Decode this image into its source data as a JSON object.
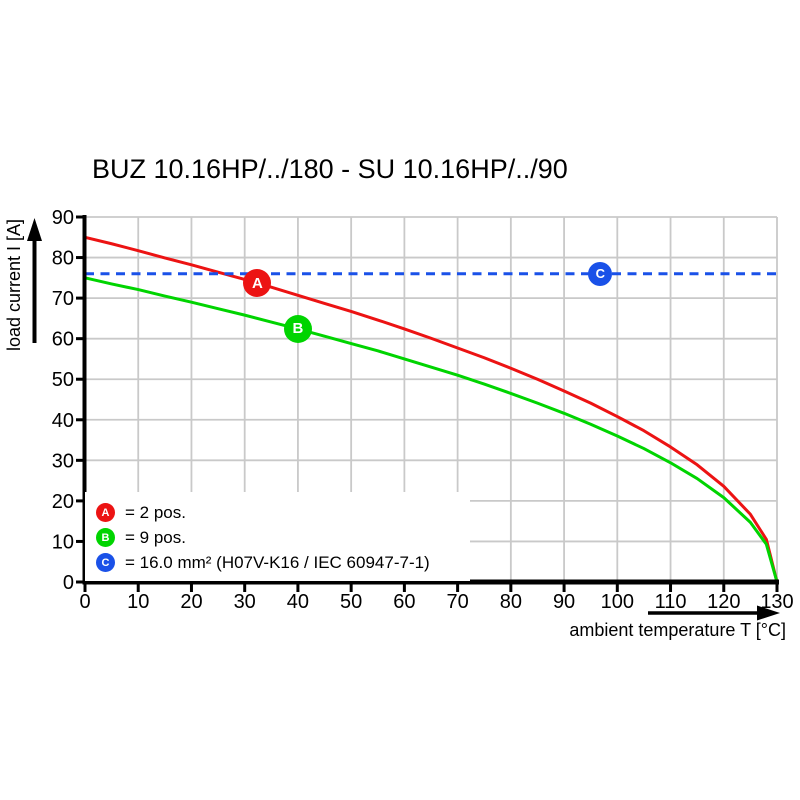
{
  "title": "BUZ 10.16HP/../180 - SU 10.16HP/../90",
  "colors": {
    "red": "#ec1313",
    "green": "#00d400",
    "blue": "#1a51e8",
    "grid": "#c9c9c9",
    "axis": "#000000",
    "background": "#ffffff"
  },
  "legend": {
    "items": [
      {
        "letter": "A",
        "color": "#ec1313",
        "label": "= 2 pos."
      },
      {
        "letter": "B",
        "color": "#00d400",
        "label": "= 9 pos."
      },
      {
        "letter": "C",
        "color": "#1a51e8",
        "label": "= 16.0 mm² (H07V-K16 / IEC 60947-7-1)"
      }
    ]
  },
  "chart_data": {
    "type": "line",
    "title": "BUZ 10.16HP/../180 - SU 10.16HP/../90",
    "xlabel": "ambient temperature T [°C]",
    "ylabel": "load current I [A]",
    "xlim": [
      0,
      130
    ],
    "ylim": [
      0,
      90
    ],
    "grid": true,
    "x_ticks": [
      0,
      10,
      20,
      30,
      40,
      50,
      60,
      70,
      80,
      90,
      100,
      110,
      120,
      130
    ],
    "y_ticks": [
      0,
      10,
      20,
      30,
      40,
      50,
      60,
      70,
      80,
      90
    ],
    "x": [
      0,
      5,
      10,
      15,
      20,
      25,
      30,
      35,
      40,
      45,
      50,
      55,
      60,
      65,
      70,
      75,
      80,
      85,
      90,
      95,
      100,
      105,
      110,
      115,
      120,
      125,
      128,
      130
    ],
    "series": [
      {
        "name": "A",
        "label": "2 pos.",
        "color": "#ec1313",
        "style": "solid",
        "values": [
          85,
          83.4,
          81.7,
          79.9,
          78.2,
          76.4,
          74.6,
          72.7,
          70.7,
          68.7,
          66.7,
          64.6,
          62.4,
          60.1,
          57.7,
          55.3,
          52.7,
          50,
          47.1,
          44.1,
          40.8,
          37.3,
          33.3,
          28.9,
          23.6,
          16.7,
          10.5,
          0
        ]
      },
      {
        "name": "B",
        "label": "9 pos.",
        "color": "#00d400",
        "style": "solid",
        "values": [
          75,
          73.5,
          72.1,
          70.5,
          69,
          67.4,
          65.8,
          64.1,
          62.4,
          60.6,
          58.8,
          57,
          55,
          53,
          51,
          48.8,
          46.5,
          44.1,
          41.6,
          38.9,
          36,
          32.9,
          29.4,
          25.5,
          20.8,
          14.7,
          9.3,
          0
        ]
      },
      {
        "name": "C",
        "label": "16.0 mm² (H07V-K16 / IEC 60947-7-1)",
        "color": "#1a51e8",
        "style": "dashed",
        "const_y": 76
      }
    ],
    "markers": [
      {
        "series": "A",
        "letter": "A",
        "x": 32.4,
        "y": 73.7,
        "r": 14
      },
      {
        "series": "B",
        "letter": "B",
        "x": 40,
        "y": 62.4,
        "r": 14
      },
      {
        "series": "C",
        "letter": "C",
        "x": 96.8,
        "y": 76,
        "r": 12
      }
    ],
    "legend_position": "bottom-left"
  }
}
